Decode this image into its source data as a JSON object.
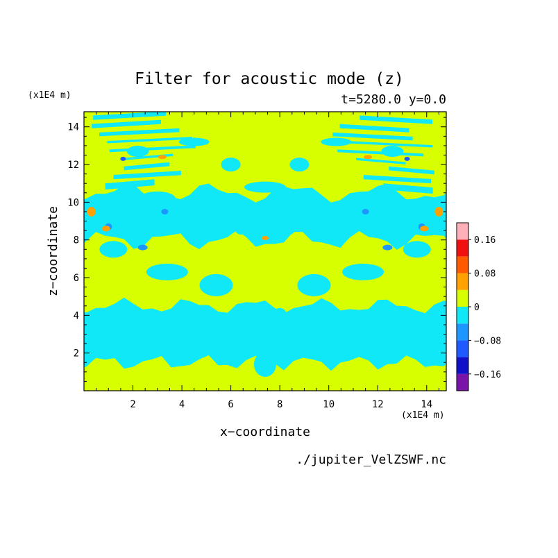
{
  "chart_data": {
    "type": "heatmap",
    "title": "Filter for acoustic mode (z)",
    "subtitle": "t=5280.0 y=0.0",
    "xlabel": "x−coordinate",
    "ylabel": "z−coordinate",
    "x_unit": "(x1E4 m)",
    "y_unit": "(x1E4 m)",
    "xlim": [
      0,
      14.8
    ],
    "ylim": [
      0,
      14.8
    ],
    "xticks": [
      "2",
      "4",
      "6",
      "8",
      "10",
      "12",
      "14"
    ],
    "yticks": [
      "2",
      "4",
      "6",
      "8",
      "10",
      "12",
      "14"
    ],
    "levels": [
      -0.2,
      -0.16,
      -0.12,
      -0.08,
      -0.04,
      0,
      0.04,
      0.08,
      0.12,
      0.16,
      0.2
    ],
    "colorbar_ticks": [
      "0.16",
      "0.08",
      "0",
      "−0.08",
      "−0.16"
    ],
    "colors": {
      "very_negative": "#7a14a8",
      "strong_negative": "#1010c8",
      "negative_3": "#1e5aff",
      "negative_2": "#1e96ff",
      "negative_small": "#10e8f8",
      "positive_small": "#d8ff00",
      "positive_2": "#ffa200",
      "positive_3": "#ff5a00",
      "positive_4": "#f01010",
      "very_positive": "#ffb0b8"
    },
    "regions": [
      {
        "level": "0 to 0.04",
        "z_range": [
          0,
          1.5
        ],
        "description": "bottom band"
      },
      {
        "level": "-0.04 to 0",
        "z_range": [
          1.5,
          4.5
        ],
        "description": "lower band"
      },
      {
        "level": "0 to 0.04",
        "z_range": [
          4.5,
          8
        ],
        "description": "mid band"
      },
      {
        "level": "-0.04 to 0",
        "z_range": [
          8,
          10.5
        ],
        "description": "upper-mid band"
      },
      {
        "level": "0 to 0.04",
        "z_range": [
          10.5,
          14.8
        ],
        "description": "top band"
      }
    ]
  },
  "footer": {
    "source": "./jupiter_VelZSWF.nc"
  }
}
